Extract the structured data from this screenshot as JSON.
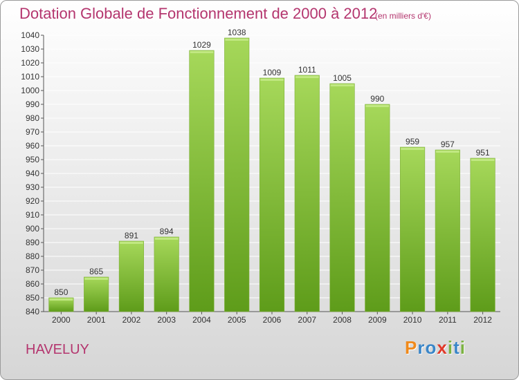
{
  "title": "Dotation Globale de Fonctionnement de 2000 à 2012",
  "unit_note": "(en milliers d'€)",
  "commune": "HAVELUY",
  "logo": {
    "text": "Proxiti",
    "letters": [
      {
        "ch": "P",
        "color": "#f08a1c"
      },
      {
        "ch": "r",
        "color": "#3a86c8"
      },
      {
        "ch": "o",
        "color": "#3a86c8"
      },
      {
        "ch": "x",
        "color": "#e03a2a"
      },
      {
        "ch": "i",
        "color": "#7cb342"
      },
      {
        "ch": "t",
        "color": "#3a86c8"
      },
      {
        "ch": "i",
        "color": "#7cb342"
      }
    ]
  },
  "colors": {
    "title": "#b4356e",
    "bar_light": "#a6d85a",
    "bar_dark": "#5e9c1a",
    "grid": "#ffffff",
    "text": "#333333"
  },
  "chart_data": {
    "type": "bar",
    "title": "Dotation Globale de Fonctionnement de 2000 à 2012",
    "subtitle": "(en milliers d'€)",
    "categories": [
      "2000",
      "2001",
      "2002",
      "2003",
      "2004",
      "2005",
      "2006",
      "2007",
      "2008",
      "2009",
      "2010",
      "2011",
      "2012"
    ],
    "values": [
      850,
      865,
      891,
      894,
      1029,
      1038,
      1009,
      1011,
      1005,
      990,
      959,
      957,
      951
    ],
    "ylim": [
      840,
      1040
    ],
    "yticks": [
      840,
      850,
      860,
      870,
      880,
      890,
      900,
      910,
      920,
      930,
      940,
      950,
      960,
      970,
      980,
      990,
      1000,
      1010,
      1020,
      1030,
      1040
    ],
    "grid": true,
    "data_labels": true
  }
}
